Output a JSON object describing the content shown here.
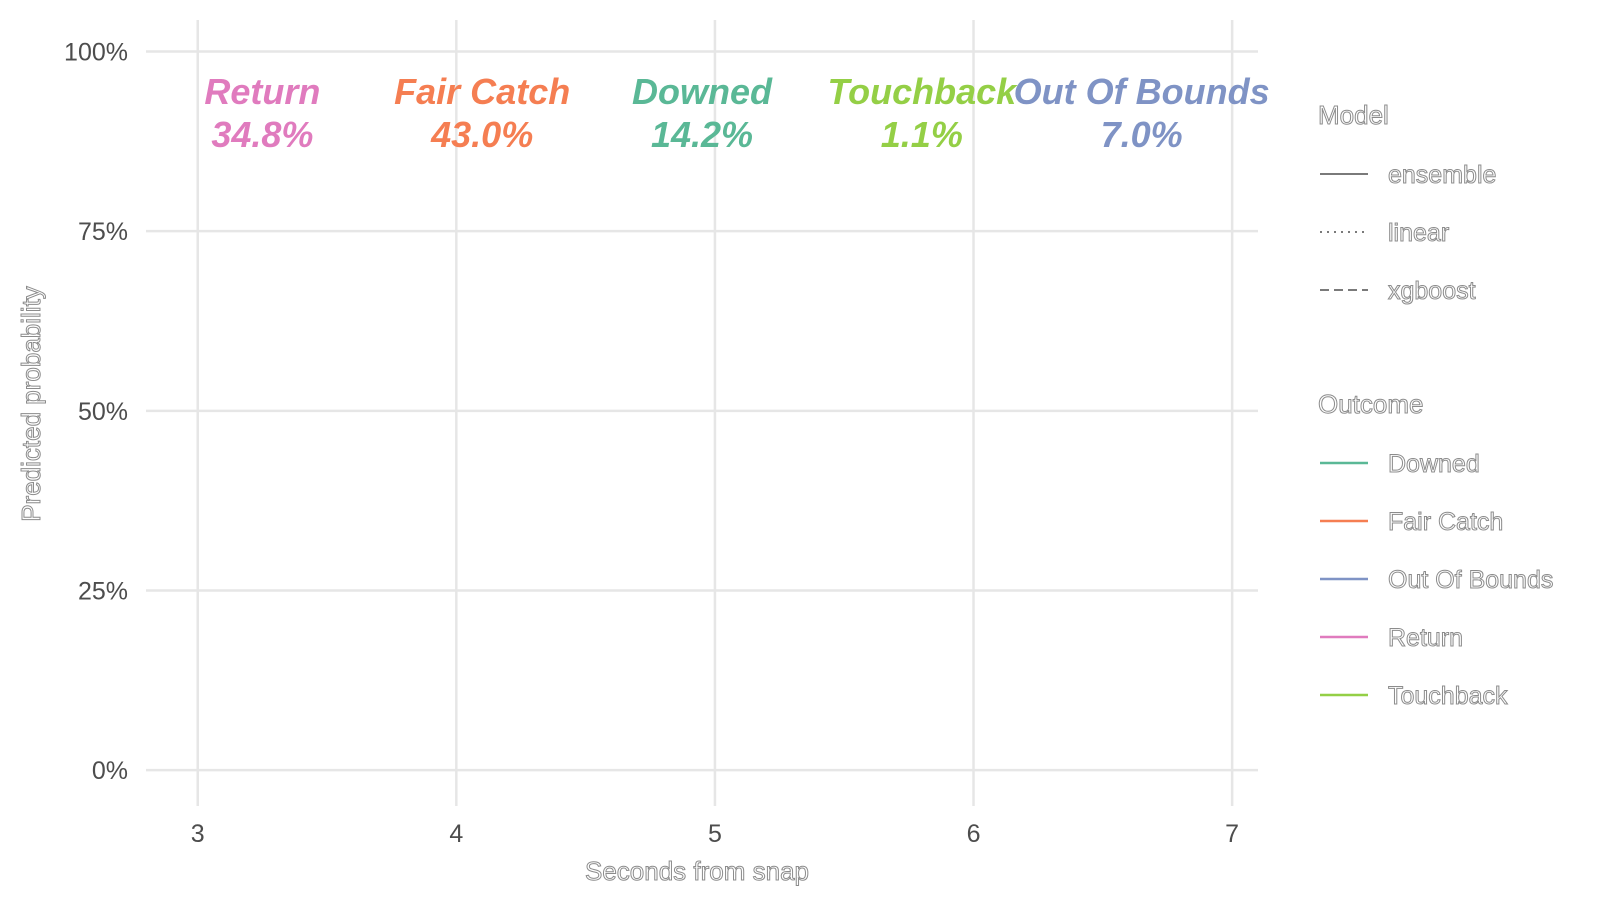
{
  "chart_data": {
    "type": "line",
    "title": "",
    "xlabel": "Seconds from snap",
    "ylabel": "Predicted probability",
    "xlim": [
      2.8,
      7.1
    ],
    "ylim": [
      -0.05,
      1.03
    ],
    "x_ticks": [
      3,
      4,
      5,
      6,
      7
    ],
    "x_tick_labels": [
      "3",
      "4",
      "5",
      "6",
      "7"
    ],
    "y_ticks": [
      0,
      0.25,
      0.5,
      0.75,
      1.0
    ],
    "y_tick_labels": [
      "0%",
      "25%",
      "50%",
      "75%",
      "100%"
    ],
    "grid": true,
    "series": [],
    "annotations": [
      {
        "outcome": "Return",
        "value": "34.8%",
        "x": 3.25,
        "color": "#E07BBE"
      },
      {
        "outcome": "Fair Catch",
        "value": "43.0%",
        "x": 4.1,
        "color": "#F57E52"
      },
      {
        "outcome": "Downed",
        "value": "14.2%",
        "x": 4.95,
        "color": "#5AB896"
      },
      {
        "outcome": "Touchback",
        "value": "1.1%",
        "x": 5.8,
        "color": "#94CF46"
      },
      {
        "outcome": "Out Of Bounds",
        "value": "7.0%",
        "x": 6.65,
        "color": "#7F93C5"
      }
    ],
    "legend_placement": "right",
    "legends": [
      {
        "title": "Model",
        "items": [
          {
            "label": "ensemble",
            "linetype": "solid"
          },
          {
            "label": "linear",
            "linetype": "dotted"
          },
          {
            "label": "xgboost",
            "linetype": "dashed"
          }
        ]
      },
      {
        "title": "Outcome",
        "items": [
          {
            "label": "Downed",
            "color": "#5AB896"
          },
          {
            "label": "Fair Catch",
            "color": "#F57E52"
          },
          {
            "label": "Out Of Bounds",
            "color": "#7F93C5"
          },
          {
            "label": "Return",
            "color": "#E07BBE"
          },
          {
            "label": "Touchback",
            "color": "#94CF46"
          }
        ]
      }
    ]
  }
}
